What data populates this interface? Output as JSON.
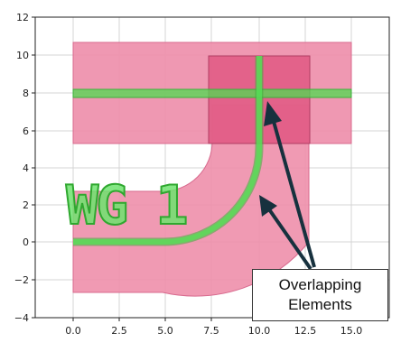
{
  "chart_data": {
    "type": "diagram",
    "xlim": [
      -2.5,
      15.5
    ],
    "ylim": [
      -4,
      12
    ],
    "x_ticks": [
      "0.0",
      "2.5",
      "5.0",
      "7.5",
      "10.0",
      "12.5",
      "15.0"
    ],
    "y_ticks": [
      "12",
      "10",
      "8",
      "6",
      "4",
      "2",
      "0",
      "−2",
      "−4"
    ],
    "grid": true,
    "shapes": {
      "upper_band": {
        "x": [
          0,
          15
        ],
        "y": [
          5.3,
          10.7
        ],
        "color": "#ee8fab"
      },
      "overlap_square": {
        "x": [
          7.3,
          12.7
        ],
        "y": [
          5.3,
          10.0
        ],
        "color": "#e05882"
      },
      "bend": {
        "center": [
          4.7,
          0
        ],
        "inner_radius": 2.7,
        "outer_radius": 8.0,
        "straight_x": [
          0,
          4.7
        ],
        "color": "#ee8fab"
      },
      "vertical_column": {
        "x": [
          7.4,
          12.7
        ],
        "y": [
          0,
          5.3
        ],
        "color": "#ee8fab"
      },
      "waveguide_color": "#4fdc4f",
      "horizontal_waveguide_y": 8,
      "vertical_waveguide_x": 10
    },
    "label_text": "WG 1"
  },
  "callout": {
    "line1": "Overlapping",
    "line2": "Elements",
    "arrow_color": "#17313e"
  }
}
